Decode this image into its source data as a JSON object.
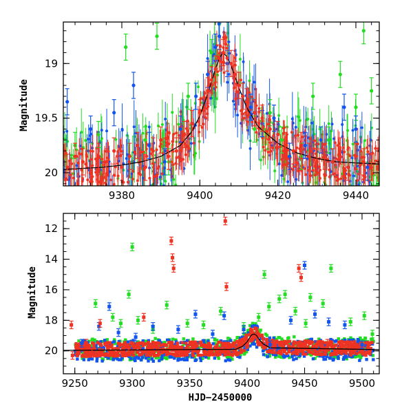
{
  "chart_data": [
    {
      "type": "scatter",
      "panel": "top",
      "title": "",
      "xlabel": "",
      "ylabel": "Magnitude",
      "xlim": [
        9365,
        9446
      ],
      "ylim": [
        20.12,
        18.62
      ],
      "y_inverted": true,
      "xticks": [
        9380,
        9400,
        9420,
        9440
      ],
      "yticks": [
        19,
        19.5,
        20
      ],
      "series": [
        {
          "name": "green",
          "color": "#22dd22",
          "x": [
            9368,
            9374,
            9381,
            9386,
            9389,
            9392,
            9397,
            9403,
            9411,
            9414,
            9418,
            9421,
            9426,
            9429,
            9433,
            9436,
            9440,
            9442,
            9444
          ],
          "y": [
            19.75,
            19.65,
            18.85,
            19.7,
            18.75,
            19.9,
            19.3,
            18.9,
            19.3,
            19.6,
            19.45,
            19.7,
            19.85,
            19.3,
            19.7,
            19.1,
            19.4,
            18.7,
            19.25
          ]
        },
        {
          "name": "blue",
          "color": "#1155ee",
          "x": [
            9366,
            9372,
            9378,
            9383,
            9387,
            9391,
            9395,
            9399,
            9402,
            9404,
            9405,
            9407,
            9410,
            9413,
            9416,
            9419,
            9423,
            9427,
            9431,
            9434,
            9437,
            9440,
            9443
          ],
          "y": [
            19.35,
            19.6,
            19.45,
            19.2,
            19.75,
            19.9,
            19.6,
            19.3,
            19.1,
            18.85,
            18.75,
            19.0,
            19.2,
            19.4,
            19.55,
            19.5,
            19.85,
            19.75,
            19.7,
            19.9,
            19.4,
            19.6,
            19.95
          ]
        },
        {
          "name": "red",
          "color": "#ee3322",
          "x": [
            9366,
            9368,
            9370,
            9372,
            9374,
            9376,
            9378,
            9380,
            9382,
            9384,
            9386,
            9388,
            9390,
            9392,
            9394,
            9396,
            9398,
            9400,
            9402,
            9403,
            9404,
            9405,
            9406,
            9407,
            9408,
            9409,
            9410,
            9411,
            9412,
            9414,
            9416,
            9418,
            9420,
            9422,
            9424,
            9426,
            9428,
            9430,
            9432,
            9434,
            9436,
            9438,
            9440,
            9442,
            9444
          ],
          "y": [
            19.95,
            19.85,
            19.9,
            20.0,
            19.85,
            19.9,
            19.8,
            19.95,
            19.85,
            19.75,
            19.95,
            19.8,
            19.7,
            19.85,
            19.8,
            19.65,
            19.55,
            19.45,
            19.25,
            19.15,
            19.05,
            18.95,
            18.9,
            18.95,
            19.0,
            19.1,
            19.2,
            19.3,
            19.35,
            19.45,
            19.5,
            19.6,
            19.65,
            19.75,
            19.8,
            19.75,
            19.85,
            19.9,
            19.85,
            19.9,
            19.8,
            19.95,
            19.85,
            19.9,
            19.95
          ]
        }
      ],
      "model_curve": {
        "color": "#000000",
        "x": [
          9365,
          9370,
          9375,
          9380,
          9385,
          9390,
          9395,
          9398,
          9400,
          9402,
          9404,
          9405,
          9406,
          9407,
          9408,
          9410,
          9412,
          9415,
          9420,
          9425,
          9430,
          9435,
          9440,
          9446
        ],
        "y": [
          19.97,
          19.96,
          19.95,
          19.93,
          19.9,
          19.85,
          19.75,
          19.62,
          19.48,
          19.28,
          19.05,
          18.95,
          18.9,
          18.94,
          19.02,
          19.22,
          19.4,
          19.58,
          19.73,
          19.82,
          19.87,
          19.9,
          19.91,
          19.92
        ]
      }
    },
    {
      "type": "scatter",
      "panel": "bottom",
      "title": "",
      "xlabel": "HJD−2450000",
      "ylabel": "Magnitude",
      "xlim": [
        9240,
        9515
      ],
      "ylim": [
        21.5,
        11.0
      ],
      "y_inverted": true,
      "xticks": [
        9250,
        9300,
        9350,
        9400,
        9450,
        9500
      ],
      "yticks": [
        12,
        14,
        16,
        18,
        20
      ],
      "series": [
        {
          "name": "green",
          "color": "#22dd22",
          "x": [
            9268,
            9283,
            9290,
            9297,
            9300,
            9305,
            9318,
            9330,
            9348,
            9362,
            9377,
            9397,
            9410,
            9415,
            9419,
            9428,
            9433,
            9442,
            9451,
            9455,
            9466,
            9473,
            9490,
            9502,
            9509
          ],
          "y": [
            16.9,
            17.8,
            18.2,
            16.3,
            13.2,
            18.0,
            18.6,
            17.0,
            18.2,
            18.3,
            17.4,
            18.4,
            17.8,
            15.0,
            17.1,
            16.6,
            16.3,
            17.4,
            18.2,
            16.5,
            16.9,
            14.6,
            18.1,
            17.7,
            18.9
          ]
        },
        {
          "name": "blue",
          "color": "#1155ee",
          "x": [
            9256,
            9271,
            9280,
            9288,
            9303,
            9318,
            9340,
            9355,
            9370,
            9380,
            9397,
            9420,
            9438,
            9450,
            9459,
            9471,
            9485,
            9500
          ],
          "y": [
            19.5,
            18.4,
            17.1,
            18.8,
            19.1,
            18.4,
            18.6,
            17.6,
            18.9,
            17.7,
            18.6,
            19.6,
            18.0,
            14.4,
            17.6,
            18.1,
            18.3,
            19.6
          ]
        },
        {
          "name": "red",
          "color": "#ee3322",
          "x": [
            9247,
            9248,
            9260,
            9265,
            9272,
            9297,
            9310,
            9334,
            9335,
            9336,
            9381,
            9382,
            9445,
            9447,
            9470
          ],
          "y": [
            18.3,
            20.3,
            19.5,
            20.1,
            18.2,
            19.8,
            17.8,
            12.8,
            13.9,
            14.6,
            11.5,
            15.8,
            14.6,
            15.2,
            19.5
          ]
        }
      ],
      "model_curve": {
        "color": "#000000",
        "x": [
          9240,
          9390,
          9396,
          9400,
          9402,
          9404,
          9406,
          9408,
          9410,
          9414,
          9420,
          9515
        ],
        "y": [
          19.97,
          19.9,
          19.7,
          19.4,
          19.15,
          18.95,
          18.9,
          18.98,
          19.2,
          19.55,
          19.8,
          19.92
        ]
      },
      "dense_bands": {
        "x_start": 9250,
        "x_end": 9510,
        "mag_min": 19.2,
        "mag_max": 20.6
      }
    }
  ]
}
